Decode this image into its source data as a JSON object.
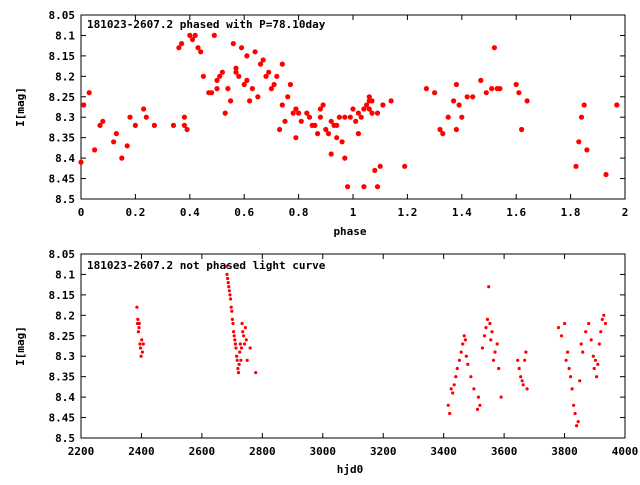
{
  "colors": {
    "series": "#ff0000",
    "axis": "#000000",
    "background": "#ffffff"
  },
  "chart_data": [
    {
      "type": "scatter",
      "title": "181023-2607.2 phased with P=78.10day",
      "xlabel": "phase",
      "ylabel": "I[mag]",
      "xlim": [
        0,
        2
      ],
      "ylim": [
        8.05,
        8.5
      ],
      "y_inverted": true,
      "grid": false,
      "xticks": [
        "0",
        "0.2",
        "0.4",
        "0.6",
        "0.8",
        "1",
        "1.2",
        "1.4",
        "1.6",
        "1.8",
        "2"
      ],
      "yticks": [
        "8.05",
        "8.1",
        "8.15",
        "8.2",
        "8.25",
        "8.3",
        "8.35",
        "8.4",
        "8.45",
        "8.5"
      ],
      "marker": "filled-circle",
      "x": [
        0.0,
        0.01,
        0.03,
        0.05,
        0.07,
        0.08,
        0.12,
        0.13,
        0.15,
        0.17,
        0.18,
        0.2,
        0.23,
        0.24,
        0.27,
        0.34,
        0.36,
        0.37,
        0.38,
        0.38,
        0.39,
        0.4,
        0.41,
        0.42,
        0.43,
        0.44,
        0.45,
        0.47,
        0.49,
        0.5,
        0.51,
        0.53,
        0.55,
        0.56,
        0.57,
        0.58,
        0.59,
        0.6,
        0.61,
        0.62,
        0.63,
        0.64,
        0.65,
        0.66,
        0.67,
        0.68,
        0.7,
        0.71,
        0.72,
        0.73,
        0.74,
        0.75,
        0.76,
        0.77,
        0.78,
        0.79,
        0.8,
        0.81,
        0.83,
        0.85,
        0.86,
        0.87,
        0.88,
        0.89,
        0.9,
        0.91,
        0.92,
        0.93,
        0.94,
        0.95,
        0.96,
        0.97,
        0.98,
        1.0,
        1.01,
        1.02,
        1.03,
        1.04,
        1.05,
        1.06,
        1.07,
        1.08,
        1.09,
        1.1,
        1.11,
        1.14,
        1.19,
        1.27,
        1.3,
        1.32,
        1.33,
        1.35,
        1.37,
        1.38,
        1.39,
        1.4,
        1.42,
        1.44,
        1.47,
        1.49,
        1.51,
        1.52,
        1.53,
        1.54,
        1.6,
        1.61,
        1.62,
        1.64,
        1.82,
        1.83,
        1.84,
        1.85,
        1.86,
        1.93,
        1.97,
        1.38,
        1.06,
        1.02,
        0.97,
        0.94,
        0.92,
        0.88,
        0.84,
        0.79,
        0.74,
        0.69,
        0.61,
        0.57,
        0.54,
        0.52,
        0.5,
        0.48,
        1.06,
        1.09,
        1.04,
        0.99,
        1.07
      ],
      "y": [
        8.41,
        8.27,
        8.24,
        8.38,
        8.32,
        8.31,
        8.36,
        8.34,
        8.4,
        8.37,
        8.3,
        8.32,
        8.28,
        8.3,
        8.32,
        8.32,
        8.13,
        8.12,
        8.32,
        8.3,
        8.33,
        8.1,
        8.11,
        8.1,
        8.13,
        8.14,
        8.2,
        8.24,
        8.1,
        8.21,
        8.2,
        8.29,
        8.26,
        8.12,
        8.19,
        8.2,
        8.13,
        8.22,
        8.21,
        8.26,
        8.23,
        8.14,
        8.25,
        8.17,
        8.16,
        8.2,
        8.23,
        8.22,
        8.2,
        8.33,
        8.27,
        8.31,
        8.25,
        8.22,
        8.29,
        8.35,
        8.29,
        8.31,
        8.29,
        8.32,
        8.32,
        8.34,
        8.3,
        8.27,
        8.33,
        8.34,
        8.39,
        8.32,
        8.35,
        8.3,
        8.36,
        8.4,
        8.47,
        8.28,
        8.31,
        8.34,
        8.3,
        8.47,
        8.27,
        8.25,
        8.29,
        8.43,
        8.47,
        8.42,
        8.27,
        8.26,
        8.42,
        8.23,
        8.24,
        8.33,
        8.34,
        8.3,
        8.26,
        8.22,
        8.27,
        8.3,
        8.25,
        8.25,
        8.21,
        8.24,
        8.23,
        8.13,
        8.23,
        8.23,
        8.22,
        8.24,
        8.33,
        8.26,
        8.42,
        8.36,
        8.3,
        8.27,
        8.38,
        8.44,
        8.27,
        8.33,
        8.28,
        8.29,
        8.3,
        8.32,
        8.31,
        8.28,
        8.3,
        8.28,
        8.17,
        8.19,
        8.15,
        8.18,
        8.23,
        8.19,
        8.23,
        8.24,
        8.26,
        8.29,
        8.28,
        8.3,
        8.26
      ]
    },
    {
      "type": "scatter",
      "title": "181023-2607.2 not phased light curve",
      "xlabel": "hjd0",
      "ylabel": "I[mag]",
      "xlim": [
        2200,
        4000
      ],
      "ylim": [
        8.05,
        8.5
      ],
      "y_inverted": true,
      "grid": false,
      "xticks": [
        "2200",
        "2400",
        "2600",
        "2800",
        "3000",
        "3200",
        "3400",
        "3600",
        "3800",
        "4000"
      ],
      "yticks": [
        "8.05",
        "8.1",
        "8.15",
        "8.2",
        "8.25",
        "8.3",
        "8.35",
        "8.4",
        "8.45",
        "8.5"
      ],
      "marker": "small-dot",
      "x": [
        2385,
        2387,
        2388,
        2390,
        2392,
        2393,
        2395,
        2397,
        2399,
        2401,
        2403,
        2406,
        2681,
        2683,
        2685,
        2687,
        2689,
        2691,
        2693,
        2695,
        2697,
        2699,
        2701,
        2703,
        2705,
        2707,
        2709,
        2711,
        2713,
        2715,
        2717,
        2719,
        2721,
        2723,
        2725,
        2727,
        2729,
        2731,
        2733,
        2735,
        2738,
        2741,
        2744,
        2747,
        2750,
        2760,
        2778,
        3415,
        3420,
        3425,
        3430,
        3435,
        3440,
        3445,
        3452,
        3458,
        3463,
        3468,
        3472,
        3475,
        3480,
        3490,
        3500,
        3512,
        3515,
        3520,
        3528,
        3535,
        3540,
        3545,
        3549,
        3553,
        3556,
        3560,
        3565,
        3570,
        3577,
        3582,
        3590,
        3645,
        3650,
        3655,
        3660,
        3663,
        3668,
        3672,
        3676,
        3780,
        3790,
        3800,
        3805,
        3810,
        3815,
        3820,
        3825,
        3830,
        3835,
        3840,
        3845,
        3850,
        3855,
        3860,
        3870,
        3880,
        3888,
        3895,
        3898,
        3902,
        3906,
        3910,
        3915,
        3920,
        3925,
        3930,
        3935
      ],
      "y": [
        8.18,
        8.22,
        8.21,
        8.24,
        8.23,
        8.22,
        8.27,
        8.28,
        8.3,
        8.26,
        8.29,
        8.27,
        8.08,
        8.1,
        8.11,
        8.12,
        8.13,
        8.14,
        8.15,
        8.16,
        8.18,
        8.19,
        8.21,
        8.22,
        8.24,
        8.25,
        8.26,
        8.27,
        8.28,
        8.3,
        8.31,
        8.33,
        8.34,
        8.32,
        8.29,
        8.27,
        8.31,
        8.28,
        8.22,
        8.24,
        8.25,
        8.27,
        8.23,
        8.26,
        8.31,
        8.28,
        8.34,
        8.42,
        8.44,
        8.38,
        8.39,
        8.37,
        8.35,
        8.33,
        8.31,
        8.29,
        8.27,
        8.25,
        8.26,
        8.3,
        8.32,
        8.35,
        8.38,
        8.43,
        8.4,
        8.42,
        8.28,
        8.25,
        8.23,
        8.21,
        8.13,
        8.22,
        8.26,
        8.24,
        8.31,
        8.29,
        8.27,
        8.33,
        8.4,
        8.31,
        8.33,
        8.35,
        8.36,
        8.37,
        8.31,
        8.29,
        8.38,
        8.23,
        8.25,
        8.22,
        8.31,
        8.29,
        8.33,
        8.35,
        8.38,
        8.42,
        8.44,
        8.47,
        8.46,
        8.36,
        8.27,
        8.29,
        8.24,
        8.22,
        8.26,
        8.3,
        8.33,
        8.31,
        8.35,
        8.32,
        8.27,
        8.24,
        8.21,
        8.2,
        8.22
      ]
    }
  ]
}
